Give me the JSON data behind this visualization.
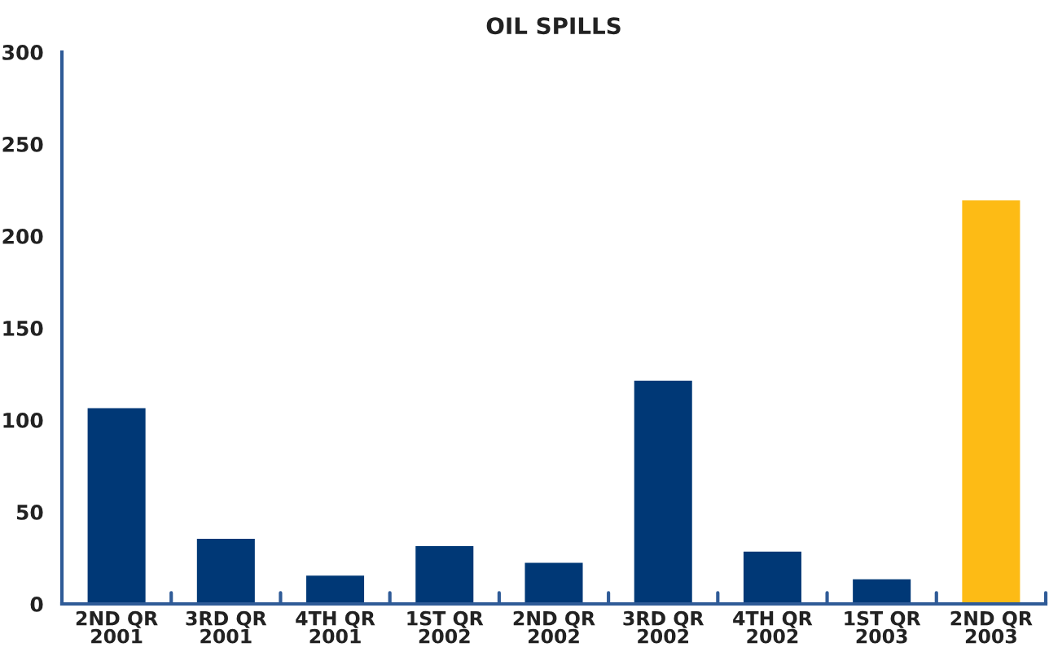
{
  "chart_data": {
    "type": "bar",
    "title": "OIL SPILLS",
    "categories": [
      "2ND QR\n2001",
      "3RD QR\n2001",
      "4TH QR\n2001",
      "1ST QR\n2002",
      "2ND QR\n2002",
      "3RD QR\n2002",
      "4TH QR\n2002",
      "1ST QR\n2003",
      "2ND QR\n2003"
    ],
    "values": [
      107,
      36,
      16,
      32,
      23,
      122,
      29,
      14,
      220
    ],
    "colors": [
      "#003876",
      "#003876",
      "#003876",
      "#003876",
      "#003876",
      "#003876",
      "#003876",
      "#003876",
      "#fdbb15"
    ],
    "ylim": [
      0,
      300
    ],
    "yticks": [
      0,
      50,
      100,
      150,
      200,
      250,
      300
    ],
    "grid": false
  }
}
